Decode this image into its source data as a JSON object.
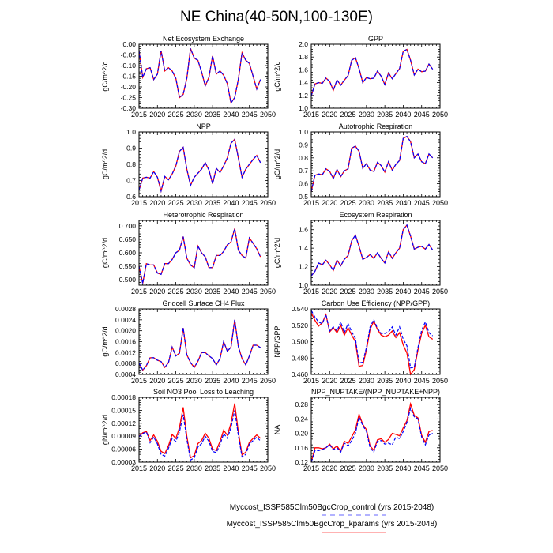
{
  "title": "NE China(40-50N,100-130E)",
  "legend": [
    {
      "label": "Myccost_ISSP585Clm50BgcCrop_control (yrs 2015-2048)",
      "color": "#0000ff",
      "dash": true
    },
    {
      "label": "Myccost_ISSP585Clm50BgcCrop_kparams (yrs 2015-2048)",
      "color": "#ff0000",
      "dash": false
    }
  ],
  "chart_data": [
    {
      "type": "line",
      "title": "Net Ecosystem Exchange",
      "ylabel": "gC/m^2/d",
      "xlim": [
        2015,
        2050
      ],
      "ylim": [
        -0.3,
        0.0
      ],
      "xticks": [
        "2015",
        "2020",
        "2025",
        "2030",
        "2035",
        "2040",
        "2045",
        "2050"
      ],
      "yticks": [
        "-0.30",
        "-0.25",
        "-0.20",
        "-0.15",
        "-0.10",
        "-0.05",
        "0.00"
      ],
      "kparams": [
        -0.03,
        -0.155,
        -0.115,
        -0.11,
        -0.165,
        -0.14,
        -0.03,
        -0.125,
        -0.11,
        -0.125,
        -0.16,
        -0.25,
        -0.235,
        -0.16,
        -0.02,
        -0.065,
        -0.075,
        -0.13,
        -0.195,
        -0.155,
        -0.055,
        -0.14,
        -0.125,
        -0.145,
        -0.185,
        -0.275,
        -0.25,
        -0.165,
        -0.04,
        -0.075,
        -0.09,
        -0.15,
        -0.21,
        -0.165
      ]
    },
    {
      "type": "line",
      "title": "GPP",
      "ylabel": "gC/m^2/d",
      "xlim": [
        2015,
        2050
      ],
      "ylim": [
        1.0,
        2.0
      ],
      "xticks": [
        "2015",
        "2020",
        "2025",
        "2030",
        "2035",
        "2040",
        "2045",
        "2050"
      ],
      "yticks": [
        "1.0",
        "1.2",
        "1.4",
        "1.6",
        "1.8",
        "2.0"
      ],
      "kparams": [
        1.19,
        1.38,
        1.4,
        1.39,
        1.47,
        1.42,
        1.28,
        1.44,
        1.36,
        1.44,
        1.51,
        1.75,
        1.79,
        1.62,
        1.4,
        1.48,
        1.46,
        1.47,
        1.58,
        1.5,
        1.37,
        1.55,
        1.46,
        1.54,
        1.62,
        1.89,
        1.92,
        1.75,
        1.52,
        1.61,
        1.57,
        1.58,
        1.69,
        1.61
      ]
    },
    {
      "type": "line",
      "title": "NPP",
      "ylabel": "gC/m^2/d",
      "xlim": [
        2015,
        2050
      ],
      "ylim": [
        0.6,
        1.0
      ],
      "xticks": [
        "2015",
        "2020",
        "2025",
        "2030",
        "2035",
        "2040",
        "2045",
        "2050"
      ],
      "yticks": [
        "0.6",
        "0.7",
        "0.8",
        "0.9",
        "1.0"
      ],
      "kparams": [
        0.64,
        0.715,
        0.72,
        0.715,
        0.755,
        0.72,
        0.635,
        0.725,
        0.705,
        0.74,
        0.79,
        0.88,
        0.905,
        0.77,
        0.67,
        0.72,
        0.745,
        0.77,
        0.81,
        0.765,
        0.68,
        0.775,
        0.75,
        0.79,
        0.84,
        0.93,
        0.955,
        0.84,
        0.72,
        0.77,
        0.8,
        0.83,
        0.855,
        0.81
      ]
    },
    {
      "type": "line",
      "title": "Autotrophic Respiration",
      "ylabel": "gC/m^2/d",
      "xlim": [
        2015,
        2050
      ],
      "ylim": [
        0.5,
        1.0
      ],
      "xticks": [
        "2015",
        "2020",
        "2025",
        "2030",
        "2035",
        "2040",
        "2045",
        "2050"
      ],
      "yticks": [
        "0.5",
        "0.6",
        "0.7",
        "0.8",
        "0.9",
        "1.0"
      ],
      "kparams": [
        0.54,
        0.665,
        0.675,
        0.67,
        0.715,
        0.695,
        0.64,
        0.71,
        0.655,
        0.7,
        0.715,
        0.875,
        0.89,
        0.85,
        0.72,
        0.755,
        0.705,
        0.695,
        0.765,
        0.74,
        0.69,
        0.77,
        0.705,
        0.75,
        0.78,
        0.95,
        0.965,
        0.925,
        0.8,
        0.83,
        0.77,
        0.755,
        0.83,
        0.8
      ]
    },
    {
      "type": "line",
      "title": "Heterotrophic Respiration",
      "ylabel": "gC/m^2/d",
      "xlim": [
        2015,
        2050
      ],
      "ylim": [
        0.48,
        0.72
      ],
      "xticks": [
        "2015",
        "2020",
        "2025",
        "2030",
        "2035",
        "2040",
        "2045",
        "2050"
      ],
      "yticks": [
        "0.500",
        "0.550",
        "0.600",
        "0.650",
        "0.700"
      ],
      "kparams": [
        0.55,
        0.487,
        0.56,
        0.555,
        0.555,
        0.525,
        0.52,
        0.56,
        0.56,
        0.575,
        0.6,
        0.61,
        0.66,
        0.58,
        0.555,
        0.545,
        0.625,
        0.6,
        0.585,
        0.545,
        0.545,
        0.59,
        0.59,
        0.605,
        0.63,
        0.64,
        0.69,
        0.61,
        0.59,
        0.58,
        0.655,
        0.635,
        0.615,
        0.585
      ]
    },
    {
      "type": "line",
      "title": "Ecosystem Respiration",
      "ylabel": "gC/m^2/d",
      "xlim": [
        2015,
        2050
      ],
      "ylim": [
        1.0,
        1.7
      ],
      "xticks": [
        "2015",
        "2020",
        "2025",
        "2030",
        "2035",
        "2040",
        "2045",
        "2050"
      ],
      "yticks": [
        "1.0",
        "1.2",
        "1.4",
        "1.6"
      ],
      "kparams": [
        1.1,
        1.15,
        1.24,
        1.22,
        1.27,
        1.22,
        1.16,
        1.27,
        1.21,
        1.28,
        1.32,
        1.48,
        1.54,
        1.42,
        1.28,
        1.3,
        1.33,
        1.29,
        1.35,
        1.29,
        1.24,
        1.36,
        1.29,
        1.35,
        1.4,
        1.6,
        1.65,
        1.53,
        1.39,
        1.41,
        1.42,
        1.39,
        1.44,
        1.38
      ]
    },
    {
      "type": "line",
      "title": "Gridcell Surface CH4 Flux",
      "ylabel": "gC/m^2/d",
      "xlim": [
        2015,
        2050
      ],
      "ylim": [
        0.0004,
        0.0028
      ],
      "xticks": [
        "2015",
        "2020",
        "2025",
        "2030",
        "2035",
        "2040",
        "2045",
        "2050"
      ],
      "yticks": [
        "0.0004",
        "0.0008",
        "0.0012",
        "0.0016",
        "0.0020",
        "0.0024",
        "0.0028"
      ],
      "kparams": [
        0.00082,
        0.00056,
        0.00072,
        0.00101,
        0.00101,
        0.00092,
        0.00087,
        0.00066,
        0.00083,
        0.0014,
        0.00108,
        0.00118,
        0.0021,
        0.00112,
        0.00083,
        0.00066,
        0.00088,
        0.0012,
        0.0012,
        0.00108,
        0.00098,
        0.00075,
        0.00098,
        0.0016,
        0.00125,
        0.0014,
        0.0024,
        0.00142,
        0.00098,
        0.00075,
        0.00108,
        0.00147,
        0.00147,
        0.00138
      ]
    },
    {
      "type": "line",
      "title": "Carbon Use Efficiency (NPP/GPP)",
      "ylabel": "NPP/GPP",
      "xlim": [
        2015,
        2050
      ],
      "ylim": [
        0.46,
        0.54
      ],
      "xticks": [
        "2015",
        "2020",
        "2025",
        "2030",
        "2035",
        "2040",
        "2045",
        "2050"
      ],
      "yticks": [
        "0.460",
        "0.480",
        "0.500",
        "0.520",
        "0.540"
      ],
      "kparams": [
        0.535,
        0.526,
        0.519,
        0.523,
        0.533,
        0.512,
        0.517,
        0.511,
        0.52,
        0.508,
        0.517,
        0.508,
        0.5,
        0.47,
        0.471,
        0.49,
        0.515,
        0.525,
        0.515,
        0.508,
        0.506,
        0.508,
        0.513,
        0.505,
        0.511,
        0.496,
        0.486,
        0.46,
        0.466,
        0.49,
        0.51,
        0.52,
        0.506,
        0.503
      ],
      "control": [
        0.538,
        0.53,
        0.524,
        0.522,
        0.533,
        0.513,
        0.518,
        0.513,
        0.524,
        0.511,
        0.522,
        0.512,
        0.504,
        0.474,
        0.475,
        0.493,
        0.518,
        0.527,
        0.516,
        0.51,
        0.51,
        0.512,
        0.518,
        0.508,
        0.518,
        0.503,
        0.495,
        0.468,
        0.469,
        0.493,
        0.514,
        0.524,
        0.511,
        0.507
      ]
    },
    {
      "type": "line",
      "title": "Soil NO3 Pool Loss to Leaching",
      "ylabel": "gN/m^2/d",
      "xlim": [
        2015,
        2050
      ],
      "ylim": [
        3e-05,
        0.00018
      ],
      "xticks": [
        "2015",
        "2020",
        "2025",
        "2030",
        "2035",
        "2040",
        "2045",
        "2050"
      ],
      "yticks": [
        "0.00003",
        "0.00006",
        "0.00009",
        "0.00012",
        "0.00015",
        "0.00018"
      ],
      "kparams": [
        9e-05,
        9.8e-05,
        0.000101,
        8e-05,
        9.3e-05,
        7.8e-05,
        5.5e-05,
        5e-05,
        6.8e-05,
        9.4e-05,
        8.5e-05,
        0.00011,
        0.000157,
        9e-05,
        4e-05,
        4.5e-05,
        7.3e-05,
        8e-05,
        9.7e-05,
        8.5e-05,
        6e-05,
        5.7e-05,
        7.8e-05,
        0.000104,
        9.2e-05,
        0.00012,
        0.000166,
        0.0001,
        4.7e-05,
        5.3e-05,
        7.6e-05,
        8.5e-05,
        9.3e-05,
        8.5e-05
      ],
      "control": [
        8.9e-05,
        9.6e-05,
        0.0001,
        7.5e-05,
        8.8e-05,
        7.2e-05,
        4.8e-05,
        4.4e-05,
        6.2e-05,
        8.5e-05,
        7.8e-05,
        0.0001,
        0.00014,
        8.3e-05,
        3.5e-05,
        4e-05,
        6.5e-05,
        7.3e-05,
        9e-05,
        7.8e-05,
        5.5e-05,
        5.2e-05,
        7e-05,
        9.6e-05,
        8.5e-05,
        0.00011,
        0.00015,
        9.2e-05,
        4.2e-05,
        4.8e-05,
        7.2e-05,
        8e-05,
        8.8e-05,
        7.9e-05
      ]
    },
    {
      "type": "line",
      "title": "NPP_NUPTAKE/(NPP_NUPTAKE+NPP)",
      "ylabel": "NA",
      "xlim": [
        2015,
        2050
      ],
      "ylim": [
        0.12,
        0.3
      ],
      "xticks": [
        "2015",
        "2020",
        "2025",
        "2030",
        "2035",
        "2040",
        "2045",
        "2050"
      ],
      "yticks": [
        "0.12",
        "0.16",
        "0.20",
        "0.24",
        "0.28"
      ],
      "kparams": [
        0.12,
        0.16,
        0.16,
        0.157,
        0.16,
        0.17,
        0.157,
        0.165,
        0.15,
        0.178,
        0.172,
        0.19,
        0.21,
        0.253,
        0.225,
        0.21,
        0.165,
        0.153,
        0.182,
        0.185,
        0.175,
        0.183,
        0.2,
        0.197,
        0.193,
        0.215,
        0.235,
        0.282,
        0.25,
        0.243,
        0.195,
        0.175,
        0.205,
        0.208
      ],
      "control": [
        0.12,
        0.152,
        0.152,
        0.155,
        0.16,
        0.168,
        0.155,
        0.16,
        0.148,
        0.173,
        0.165,
        0.18,
        0.2,
        0.245,
        0.222,
        0.205,
        0.16,
        0.148,
        0.178,
        0.18,
        0.17,
        0.173,
        0.168,
        0.19,
        0.185,
        0.205,
        0.23,
        0.27,
        0.246,
        0.24,
        0.19,
        0.168,
        0.195,
        0.2
      ]
    }
  ],
  "start_year": 2015
}
